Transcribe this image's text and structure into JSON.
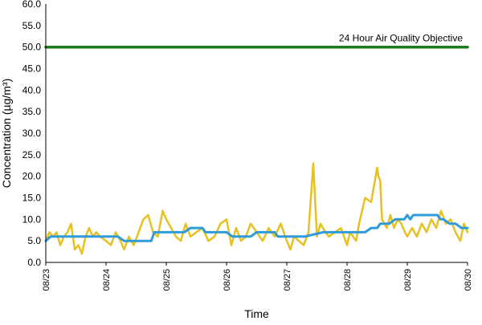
{
  "colors": {
    "hourly": "#E8C022",
    "rolling": "#2E9BDB",
    "objective": "#1E7A1E",
    "axis": "#000000"
  },
  "chart_data": {
    "type": "line",
    "title": "",
    "xlabel": "Time",
    "ylabel": "Concentration (µg/m³)",
    "xlim": [
      "08/23",
      "08/30"
    ],
    "ylim": [
      0,
      60
    ],
    "ytick_step": 5,
    "yticks": [
      "0.0",
      "5.0",
      "10.0",
      "15.0",
      "20.0",
      "25.0",
      "30.0",
      "35.0",
      "40.0",
      "45.0",
      "50.0",
      "55.0",
      "60.0"
    ],
    "xticks": [
      "08/23",
      "08/24",
      "08/25",
      "08/26",
      "08/27",
      "08/28",
      "08/29",
      "08/30"
    ],
    "grid": false,
    "legend": "none",
    "annotations": [
      {
        "text": "24 Hour Air Quality Objective",
        "y": 50
      }
    ],
    "series": [
      {
        "role": "hourly",
        "x_days": [
          0,
          0.06,
          0.12,
          0.18,
          0.24,
          0.3,
          0.36,
          0.42,
          0.48,
          0.54,
          0.6,
          0.66,
          0.72,
          0.78,
          0.84,
          0.9,
          1.0,
          1.08,
          1.16,
          1.24,
          1.3,
          1.38,
          1.46,
          1.54,
          1.62,
          1.7,
          1.78,
          1.86,
          1.94,
          2.0,
          2.08,
          2.16,
          2.24,
          2.32,
          2.4,
          2.5,
          2.6,
          2.7,
          2.8,
          2.9,
          3.0,
          3.08,
          3.16,
          3.24,
          3.32,
          3.4,
          3.5,
          3.6,
          3.7,
          3.8,
          3.9,
          4.0,
          4.06,
          4.12,
          4.2,
          4.28,
          4.36,
          4.44,
          4.5,
          4.56,
          4.6,
          4.64,
          4.7,
          4.8,
          4.9,
          5.0,
          5.05,
          5.1,
          5.15,
          5.2,
          5.3,
          5.4,
          5.45,
          5.5,
          5.52,
          5.55,
          5.58,
          5.62,
          5.66,
          5.72,
          5.78,
          5.84,
          5.9,
          5.96,
          6.0,
          6.08,
          6.16,
          6.24,
          6.32,
          6.4,
          6.48,
          6.56,
          6.64,
          6.72,
          6.8,
          6.88,
          6.94,
          7.0
        ],
        "values": [
          5,
          7,
          6,
          7,
          4,
          6,
          7,
          9,
          3,
          4,
          2,
          6,
          8,
          6,
          7,
          6,
          5,
          4,
          7,
          5,
          3,
          6,
          4,
          7,
          10,
          11,
          7,
          6,
          12,
          10,
          8,
          6,
          5,
          9,
          6,
          7,
          8,
          5,
          6,
          9,
          10,
          4,
          8,
          5,
          6,
          9,
          7,
          5,
          8,
          6,
          9,
          5,
          3,
          6,
          5,
          4,
          7,
          23,
          6,
          9,
          8,
          7,
          6,
          7,
          8,
          4,
          7,
          6,
          5,
          9,
          15,
          14,
          18,
          22,
          20,
          19,
          10,
          9,
          8,
          11,
          8,
          10,
          9,
          7,
          6,
          8,
          6,
          9,
          7,
          10,
          8,
          12,
          9,
          10,
          7,
          5,
          9,
          7
        ]
      },
      {
        "role": "rolling",
        "x_days": [
          0,
          0.08,
          0.15,
          1.0,
          1.2,
          1.3,
          1.75,
          1.8,
          2.3,
          2.4,
          2.6,
          2.65,
          3.0,
          3.1,
          3.4,
          3.5,
          3.8,
          3.85,
          4.0,
          4.2,
          4.3,
          4.6,
          4.7,
          5.3,
          5.4,
          5.5,
          5.55,
          5.7,
          5.8,
          5.95,
          6.0,
          6.05,
          6.1,
          6.5,
          6.55,
          6.6,
          6.7,
          6.8,
          6.9,
          7.0
        ],
        "values": [
          5,
          6,
          6,
          6,
          6,
          5,
          5,
          7,
          7,
          8,
          8,
          7,
          7,
          6,
          6,
          7,
          7,
          6,
          6,
          6,
          6,
          7,
          7,
          7,
          8,
          8,
          9,
          9,
          10,
          10,
          11,
          10,
          11,
          11,
          10,
          10,
          9,
          9,
          8,
          8
        ]
      },
      {
        "role": "objective",
        "x_days": [
          0,
          7
        ],
        "values": [
          50,
          50
        ]
      }
    ]
  }
}
